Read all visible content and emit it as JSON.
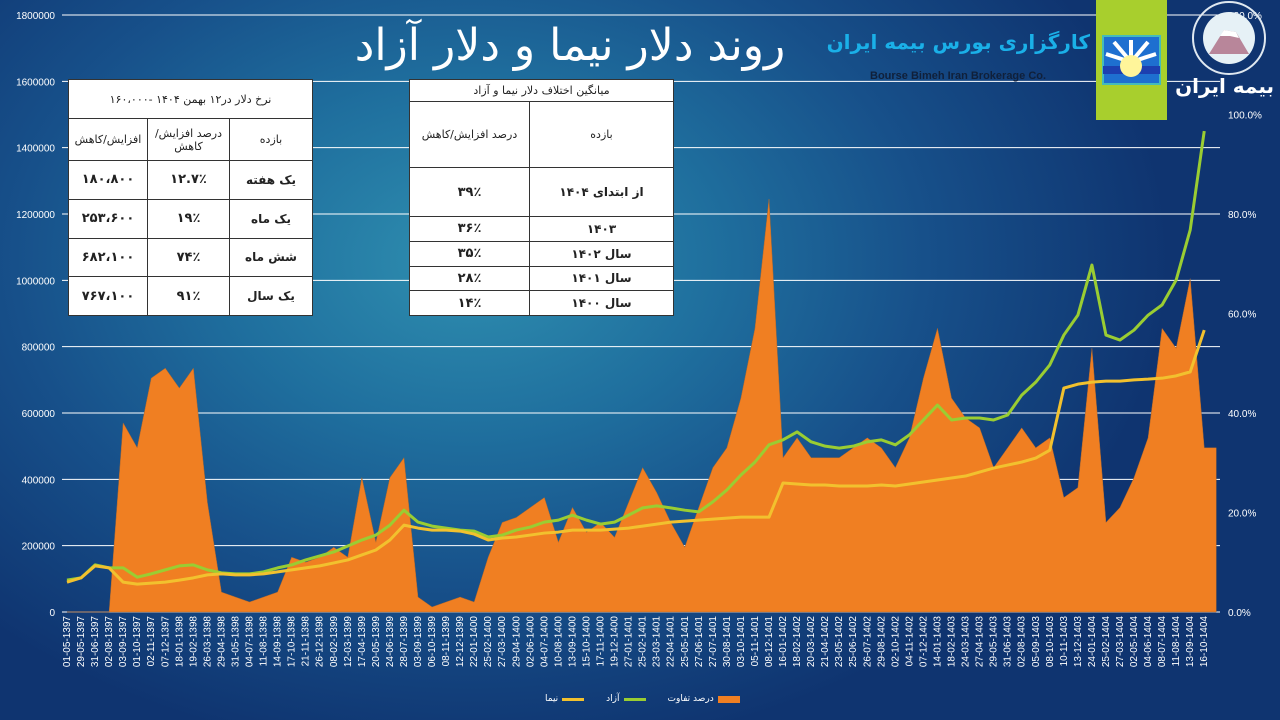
{
  "title": "روند دلار نیما و دلار آزاد",
  "brand": {
    "name_fa": "کارگزاری بورس بیمه ایران",
    "name_en": "Bourse Bimeh Iran Brokerage Co.",
    "insurer_logo_text": "بیمه ایران"
  },
  "table_rates": {
    "title": "نرخ دلار در۱۲ بهمن ۱۴۰۴ -۱۶۰،۰۰۰",
    "headers": [
      "بازده",
      "درصد افزایش/کاهش",
      "افزایش/کاهش"
    ],
    "rows": [
      {
        "period": "یک هفته",
        "percent": "۱۲.۷٪",
        "change": "۱۸۰،۸۰۰"
      },
      {
        "period": "یک ماه",
        "percent": "۱۹٪",
        "change": "۲۵۳،۶۰۰"
      },
      {
        "period": "شش ماه",
        "percent": "۷۴٪",
        "change": "۶۸۲،۱۰۰"
      },
      {
        "period": "یک سال",
        "percent": "۹۱٪",
        "change": "۷۶۷،۱۰۰"
      }
    ]
  },
  "table_gap": {
    "title": "میانگین اختلاف دلار نیما و آزاد",
    "headers": [
      "بازده",
      "درصد افزایش/کاهش"
    ],
    "rows": [
      {
        "period": "از ابتدای ۱۴۰۴",
        "percent": "۳۹٪"
      },
      {
        "period": "۱۴۰۳",
        "percent": "۳۶٪"
      },
      {
        "period": "سال ۱۴۰۲",
        "percent": "۳۵٪"
      },
      {
        "period": "سال ۱۴۰۱",
        "percent": "۲۸٪"
      },
      {
        "period": "سال ۱۴۰۰",
        "percent": "۱۴٪"
      }
    ]
  },
  "chart_data": {
    "type": "line+area",
    "title": "روند دلار نیما و دلار آزاد",
    "grid": true,
    "legend": "bottom",
    "y_left": {
      "range": [
        0,
        1800000
      ],
      "ticks": [
        "0",
        "200000",
        "400000",
        "600000",
        "800000",
        "1000000",
        "1200000",
        "1400000",
        "1600000",
        "1800000"
      ]
    },
    "y_right": {
      "range": [
        0,
        120
      ],
      "ticks": [
        "0.0%",
        "20.0%",
        "40.0%",
        "60.0%",
        "80.0%",
        "100.0%",
        "120.0%"
      ]
    },
    "categories": [
      "01-05-1397",
      "29-05-1397",
      "31-06-1397",
      "02-08-1397",
      "03-09-1397",
      "01-10-1397",
      "02-11-1397",
      "07-12-1397",
      "18-01-1398",
      "19-02-1398",
      "26-03-1398",
      "29-04-1398",
      "31-05-1398",
      "04-07-1398",
      "11-08-1398",
      "14-09-1398",
      "17-10-1398",
      "21-11-1398",
      "26-12-1398",
      "08-02-1399",
      "12-03-1399",
      "17-04-1399",
      "20-05-1399",
      "24-06-1399",
      "28-07-1399",
      "03-09-1399",
      "06-10-1399",
      "08-11-1399",
      "12-12-1399",
      "22-01-1400",
      "25-02-1400",
      "27-03-1400",
      "29-04-1400",
      "02-06-1400",
      "04-07-1400",
      "10-08-1400",
      "13-09-1400",
      "15-10-1400",
      "17-11-1400",
      "19-12-1400",
      "27-01-1401",
      "25-02-1401",
      "23-03-1401",
      "22-04-1401",
      "25-05-1401",
      "27-06-1401",
      "27-07-1401",
      "30-08-1401",
      "03-10-1401",
      "05-11-1401",
      "08-12-1401",
      "16-01-1402",
      "18-02-1402",
      "20-03-1402",
      "21-04-1402",
      "23-05-1402",
      "25-06-1402",
      "26-07-1402",
      "29-08-1402",
      "02-10-1402",
      "04-11-1402",
      "07-12-1402",
      "14-01-1403",
      "18-02-1403",
      "24-03-1403",
      "27-04-1403",
      "29-05-1403",
      "31-06-1403",
      "02-08-1403",
      "05-09-1403",
      "08-10-1403",
      "10-11-1403",
      "13-12-1403",
      "24-01-1404",
      "25-02-1404",
      "27-03-1404",
      "02-05-1404",
      "04-06-1404",
      "08-07-1404",
      "11-08-1404",
      "13-09-1404",
      "16-10-1404"
    ],
    "series": [
      {
        "name": "درصد تفاوت",
        "axis": "right",
        "kind": "area",
        "color": "#f07f22",
        "values": [
          0,
          0,
          0,
          0,
          38,
          33,
          47,
          49,
          45,
          49,
          22,
          4,
          3,
          2,
          3,
          4,
          11,
          10,
          11,
          13,
          11,
          27,
          14,
          27,
          31,
          3,
          1,
          2,
          3,
          2,
          11,
          18,
          19,
          21,
          23,
          14,
          21,
          16,
          18,
          15,
          22,
          29,
          24,
          18,
          13,
          21,
          29,
          33,
          43,
          57,
          83,
          31,
          35,
          31,
          31,
          31,
          33,
          35,
          33,
          29,
          35,
          47,
          57,
          43,
          39,
          37,
          29,
          33,
          37,
          33,
          35,
          23,
          25,
          53,
          18,
          21,
          27,
          35,
          57,
          53,
          67,
          33
        ]
      },
      {
        "name": "آزاد",
        "axis": "left",
        "kind": "line",
        "color": "#9acd32",
        "values": [
          96000,
          103000,
          142000,
          133000,
          133000,
          105000,
          115000,
          127000,
          139000,
          142000,
          127000,
          118000,
          115000,
          115000,
          121000,
          133000,
          142000,
          157000,
          169000,
          181000,
          199000,
          217000,
          232000,
          262000,
          307000,
          271000,
          259000,
          253000,
          247000,
          244000,
          226000,
          232000,
          247000,
          256000,
          271000,
          277000,
          292000,
          277000,
          265000,
          271000,
          292000,
          314000,
          320000,
          314000,
          307000,
          302000,
          332000,
          368000,
          413000,
          452000,
          504000,
          519000,
          543000,
          513000,
          500000,
          494000,
          500000,
          513000,
          519000,
          504000,
          534000,
          579000,
          624000,
          579000,
          585000,
          585000,
          579000,
          594000,
          654000,
          693000,
          745000,
          835000,
          895000,
          1046000,
          835000,
          820000,
          850000,
          895000,
          926000,
          1001000,
          1152000,
          1450000
        ]
      },
      {
        "name": "نیما",
        "axis": "left",
        "kind": "line",
        "color": "#f2c12e",
        "values": [
          90000,
          103000,
          139000,
          133000,
          90000,
          84000,
          87000,
          90000,
          96000,
          103000,
          112000,
          115000,
          112000,
          112000,
          115000,
          121000,
          127000,
          133000,
          139000,
          148000,
          157000,
          172000,
          187000,
          217000,
          262000,
          253000,
          247000,
          247000,
          244000,
          235000,
          217000,
          223000,
          226000,
          232000,
          238000,
          241000,
          247000,
          247000,
          247000,
          250000,
          253000,
          259000,
          265000,
          271000,
          274000,
          277000,
          280000,
          283000,
          286000,
          286000,
          286000,
          389000,
          386000,
          383000,
          383000,
          380000,
          380000,
          380000,
          383000,
          380000,
          386000,
          392000,
          398000,
          404000,
          410000,
          422000,
          434000,
          443000,
          452000,
          464000,
          488000,
          675000,
          687000,
          693000,
          696000,
          696000,
          700000,
          702000,
          705000,
          712000,
          724000,
          850000
        ]
      }
    ]
  }
}
